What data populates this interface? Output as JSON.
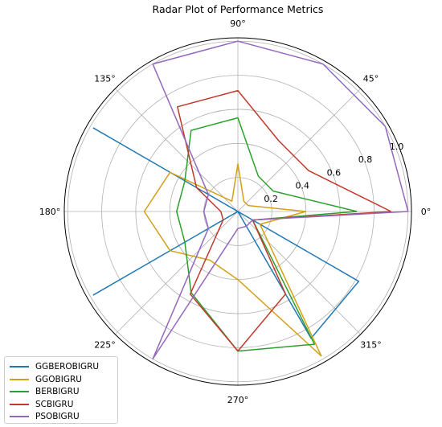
{
  "chart_data": {
    "type": "radar",
    "title": "Radar Plot of Performance Metrics",
    "angle_ticks": [
      "0°",
      "45°",
      "90°",
      "135°",
      "180°",
      "225°",
      "270°",
      "315°"
    ],
    "radial_ticks": [
      "0.2",
      "0.4",
      "0.6",
      "0.8",
      "1.0"
    ],
    "radial_tick_values": [
      0.2,
      0.4,
      0.6,
      0.8,
      1.0
    ],
    "rlim": [
      0,
      1.02
    ],
    "grid": true,
    "legend_position": "lower-left",
    "angles_deg": [
      0,
      30,
      60,
      90,
      120,
      150,
      180,
      210,
      240,
      270,
      300,
      330
    ],
    "series": [
      {
        "name": "GGBEROBIGRU",
        "color": "#1f77b4",
        "values": [
          0,
          0,
          0,
          0,
          0,
          0.98,
          0,
          0.98,
          0,
          0,
          0.86,
          0.82
        ]
      },
      {
        "name": "GGOBIGRU",
        "color": "#d4a017",
        "values": [
          0.4,
          0.07,
          0.07,
          0.28,
          0.07,
          0.46,
          0.55,
          0.46,
          0.33,
          0.4,
          0.98,
          0.15
        ]
      },
      {
        "name": "BERBIGRU",
        "color": "#2ca02c",
        "values": [
          0.7,
          0.24,
          0.24,
          0.55,
          0.55,
          0.36,
          0.36,
          0.36,
          0.55,
          0.82,
          0.9,
          0.1
        ]
      },
      {
        "name": "SCBIGRU",
        "color": "#c0392b",
        "values": [
          0.9,
          0.48,
          0.48,
          0.71,
          0.71,
          0.28,
          0.1,
          0.1,
          0.56,
          0.82,
          0.56,
          0.1
        ]
      },
      {
        "name": "PSOBIGRU",
        "color": "#9467bd",
        "values": [
          1.0,
          1.0,
          1.0,
          1.0,
          1.0,
          0.2,
          0.2,
          0.2,
          1.0,
          0.1,
          0.1,
          0.1
        ]
      }
    ]
  }
}
